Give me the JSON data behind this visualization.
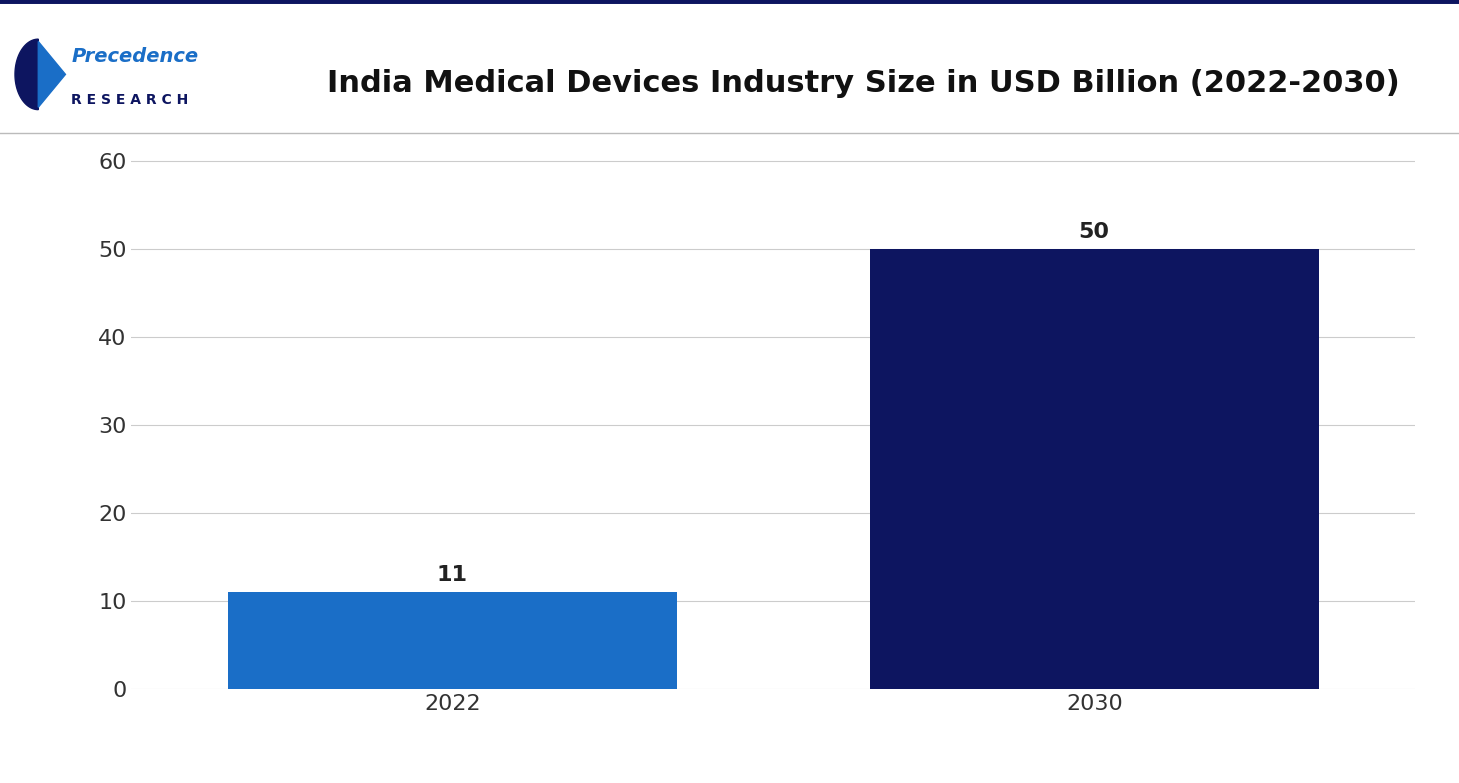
{
  "title": "India Medical Devices Industry Size in USD Billion (2022-2030)",
  "categories": [
    "2022",
    "2030"
  ],
  "values": [
    11,
    50
  ],
  "bar_colors": [
    "#1a6ec7",
    "#0d1560"
  ],
  "background_color": "#ffffff",
  "ylim": [
    0,
    65
  ],
  "yticks": [
    0,
    10,
    20,
    30,
    40,
    50,
    60
  ],
  "grid_color": "#cccccc",
  "title_fontsize": 22,
  "tick_fontsize": 16,
  "bar_label_fontsize": 16,
  "bar_width": 0.35,
  "logo_color_1": "#1a6ec7",
  "logo_color_2": "#0d1560",
  "top_border_color": "#0d1560"
}
